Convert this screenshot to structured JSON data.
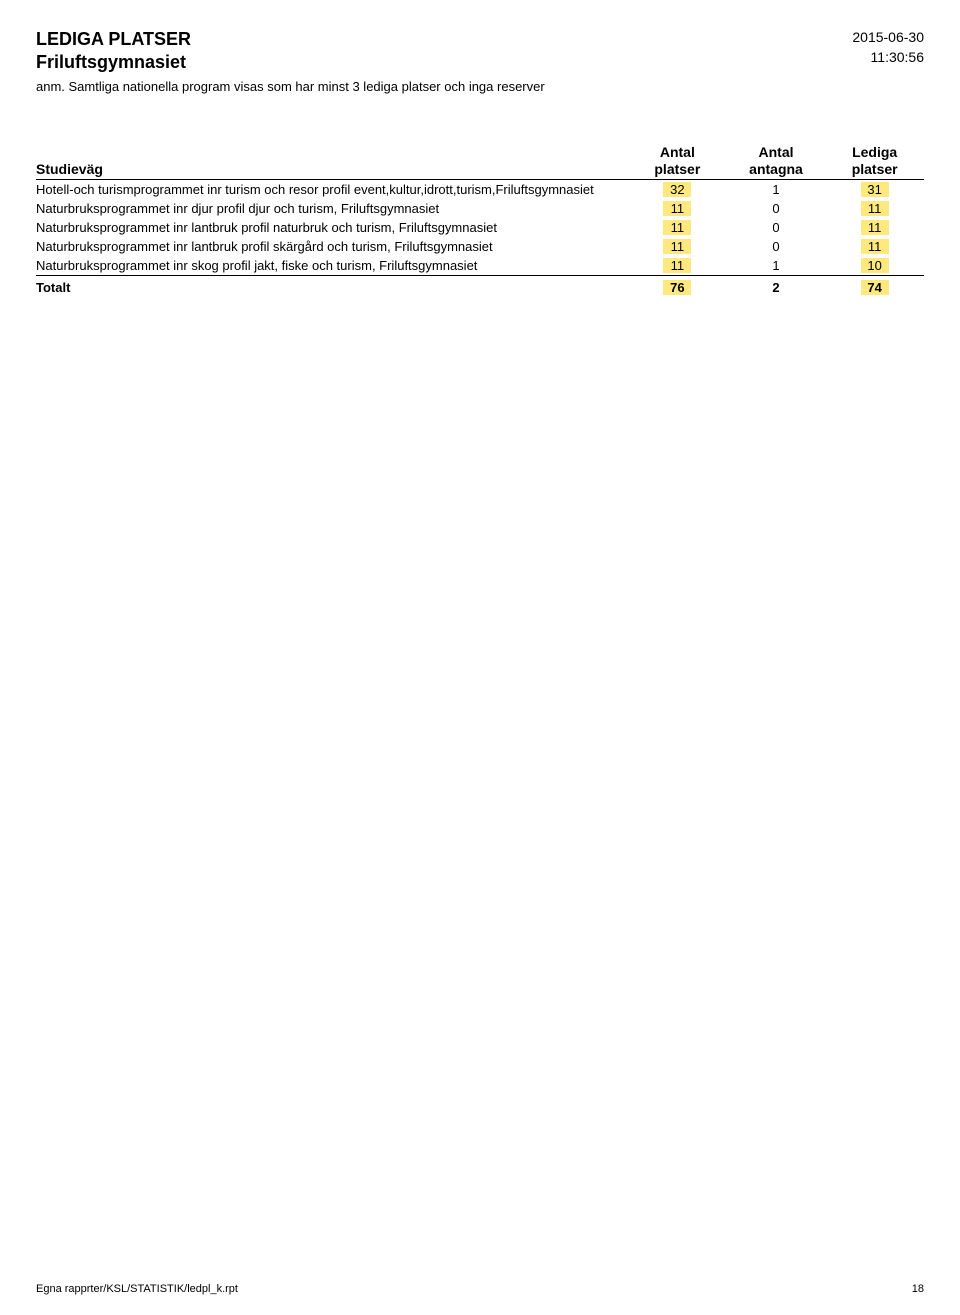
{
  "header": {
    "title": "LEDIGA PLATSER",
    "subtitle": "Friluftsgymnasiet",
    "date": "2015-06-30",
    "time": "11:30:56",
    "note": "anm. Samtliga nationella program visas som har minst 3 lediga platser och inga reserver"
  },
  "table": {
    "columns": {
      "name": "Studieväg",
      "col1_line1": "Antal",
      "col1_line2": "platser",
      "col2_line1": "Antal",
      "col2_line2": "antagna",
      "col3_line1": "Lediga",
      "col3_line2": "platser"
    },
    "rows": [
      {
        "label": "Hotell-och turismprogrammet inr turism och resor profil event,kultur,idrott,turism,Friluftsgymnasiet",
        "platser": "32",
        "antagna": "1",
        "lediga": "31"
      },
      {
        "label": "Naturbruksprogrammet inr djur profil djur och turism, Friluftsgymnasiet",
        "platser": "11",
        "antagna": "0",
        "lediga": "11"
      },
      {
        "label": "Naturbruksprogrammet inr lantbruk profil naturbruk och turism, Friluftsgymnasiet",
        "platser": "11",
        "antagna": "0",
        "lediga": "11"
      },
      {
        "label": "Naturbruksprogrammet inr lantbruk profil skärgård och turism, Friluftsgymnasiet",
        "platser": "11",
        "antagna": "0",
        "lediga": "11"
      },
      {
        "label": "Naturbruksprogrammet inr skog profil jakt, fiske och turism, Friluftsgymnasiet",
        "platser": "11",
        "antagna": "1",
        "lediga": "10"
      }
    ],
    "total": {
      "label": "Totalt",
      "platser": "76",
      "antagna": "2",
      "lediga": "74"
    },
    "highlight_color": "#ffe97f"
  },
  "footer": {
    "path": "Egna rapprter/KSL/STATISTIK/ledpl_k.rpt",
    "page": "18"
  }
}
